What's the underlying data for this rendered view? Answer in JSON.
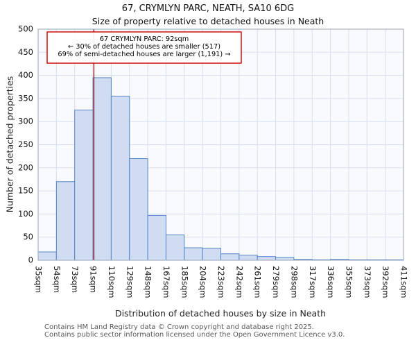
{
  "page": {
    "title": "67, CRYMLYN PARC, NEATH, SA10 6DG",
    "subtitle": "Size of property relative to detached houses in Neath",
    "footer_line1": "Contains HM Land Registry data © Crown copyright and database right 2025.",
    "footer_line2": "Contains public sector information licensed under the Open Government Licence v3.0."
  },
  "chart_data": {
    "type": "bar",
    "title": "67, CRYMLYN PARC, NEATH, SA10 6DG",
    "subtitle": "Size of property relative to detached houses in Neath",
    "xlabel": "Distribution of detached houses by size in Neath",
    "ylabel": "Number of detached properties",
    "categories": [
      "35sqm",
      "54sqm",
      "73sqm",
      "91sqm",
      "110sqm",
      "129sqm",
      "148sqm",
      "167sqm",
      "185sqm",
      "204sqm",
      "223sqm",
      "242sqm",
      "261sqm",
      "279sqm",
      "298sqm",
      "317sqm",
      "336sqm",
      "355sqm",
      "373sqm",
      "392sqm",
      "411sqm"
    ],
    "bin_edges": [
      35,
      54,
      73,
      91,
      110,
      129,
      148,
      167,
      185,
      204,
      223,
      242,
      261,
      279,
      298,
      317,
      336,
      355,
      373,
      392,
      411
    ],
    "values": [
      18,
      170,
      325,
      395,
      355,
      220,
      97,
      55,
      27,
      26,
      14,
      11,
      8,
      6,
      2,
      1,
      2,
      1,
      1,
      1
    ],
    "ylim": [
      0,
      500
    ],
    "ytick_step": 50,
    "grid": true,
    "legend": "none",
    "marker": {
      "label": "92sqm",
      "value": 92,
      "color": "#991414"
    },
    "annotation": {
      "lines": [
        "67 CRYMLYN PARC: 92sqm",
        "← 30% of detached houses are smaller (517)",
        "69% of semi-detached houses are larger (1,191) →"
      ],
      "border_color": "#cc0000"
    },
    "colors": {
      "bar_fill": "#cfdcf1",
      "bar_stroke": "#5585c8",
      "grid": "#d7dfee",
      "spine": "#9aa5b8",
      "plot_bg": "#f8fafd"
    }
  }
}
